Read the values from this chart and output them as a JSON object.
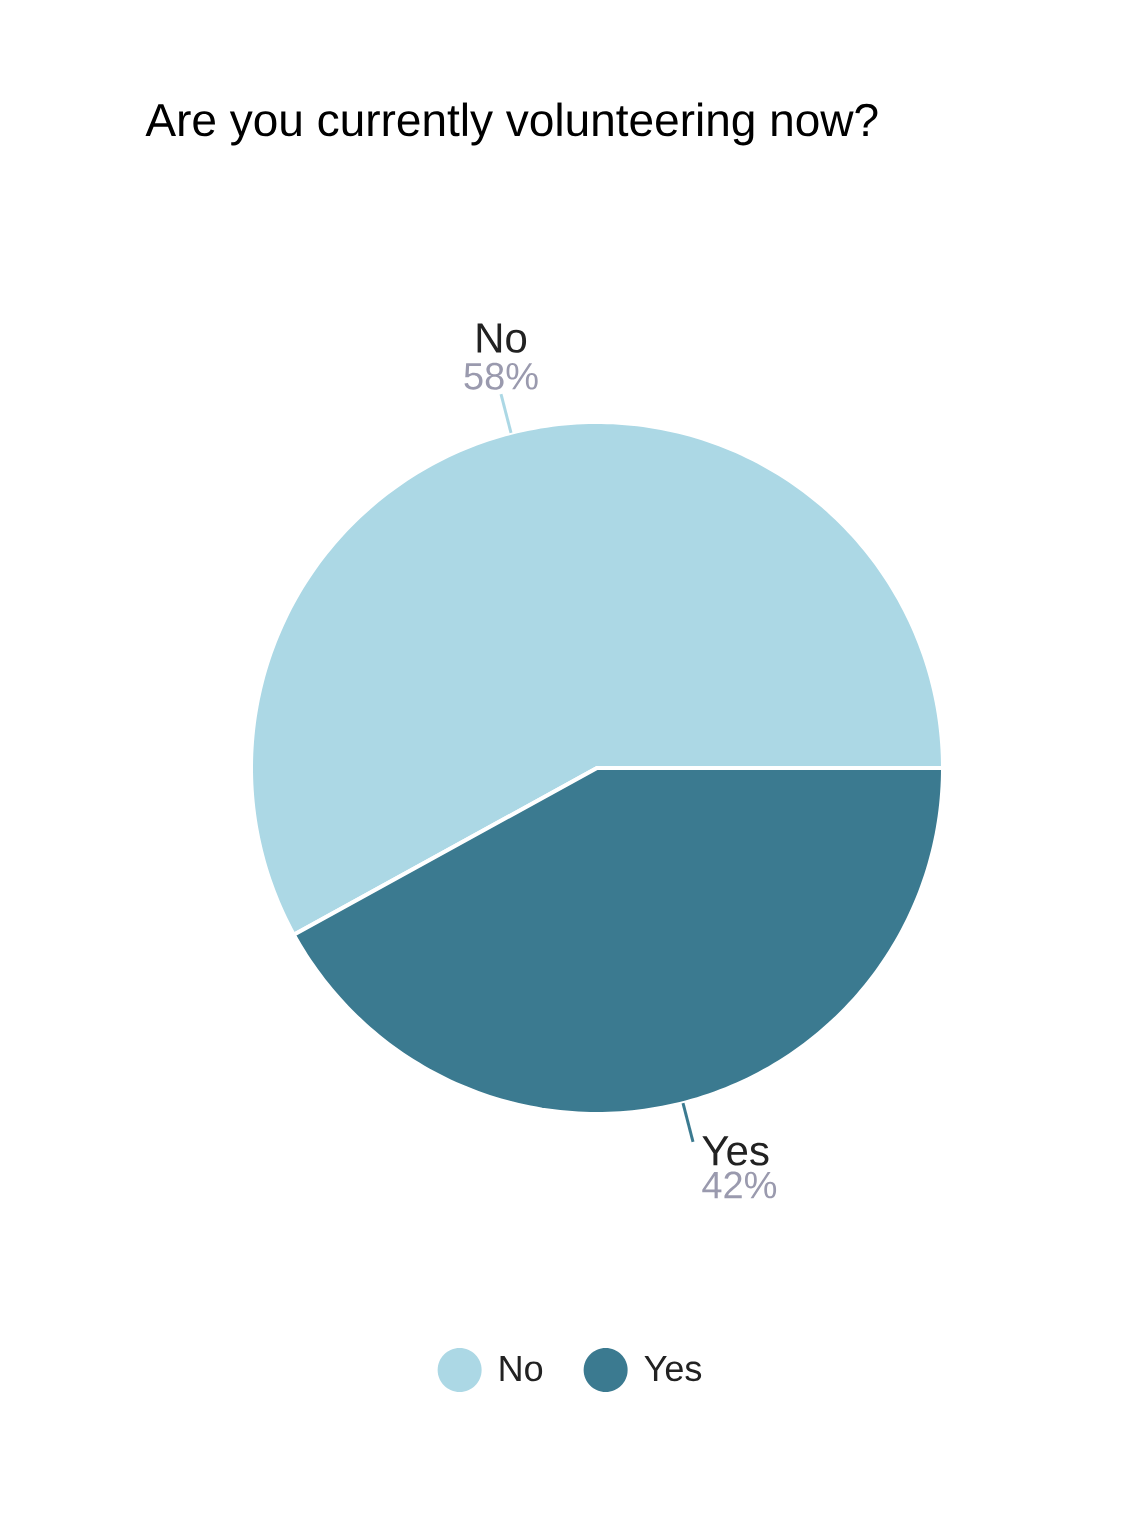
{
  "chart_data": {
    "type": "pie",
    "title": "Are you currently volunteering now?",
    "categories": [
      "No",
      "Yes"
    ],
    "values": [
      58,
      42
    ],
    "value_labels": [
      "58%",
      "42%"
    ],
    "colors": [
      "#acd8e5",
      "#3b7a90"
    ],
    "legend": "bottom"
  }
}
